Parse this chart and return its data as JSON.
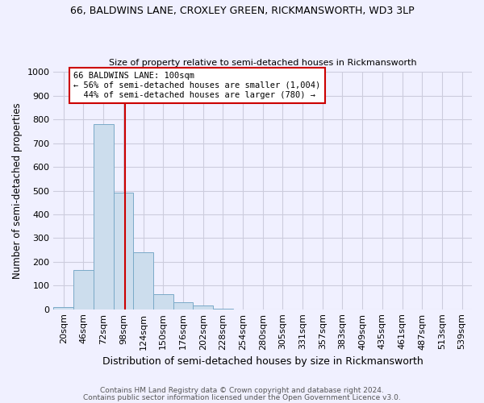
{
  "title1": "66, BALDWINS LANE, CROXLEY GREEN, RICKMANSWORTH, WD3 3LP",
  "title2": "Size of property relative to semi-detached houses in Rickmansworth",
  "xlabel": "Distribution of semi-detached houses by size in Rickmansworth",
  "ylabel": "Number of semi-detached properties",
  "footnote1": "Contains HM Land Registry data © Crown copyright and database right 2024.",
  "footnote2": "Contains public sector information licensed under the Open Government Licence v3.0.",
  "bar_labels": [
    "20sqm",
    "46sqm",
    "72sqm",
    "98sqm",
    "124sqm",
    "150sqm",
    "176sqm",
    "202sqm",
    "228sqm",
    "254sqm",
    "280sqm",
    "305sqm",
    "331sqm",
    "357sqm",
    "383sqm",
    "409sqm",
    "435sqm",
    "461sqm",
    "487sqm",
    "513sqm",
    "539sqm"
  ],
  "bar_values": [
    10,
    165,
    780,
    490,
    240,
    62,
    30,
    15,
    3,
    0,
    0,
    0,
    0,
    0,
    0,
    0,
    0,
    0,
    0,
    0,
    0
  ],
  "bar_color": "#ccdded",
  "bar_edge_color": "#7aaac8",
  "property_label": "66 BALDWINS LANE: 100sqm",
  "pct_smaller": 56,
  "pct_smaller_count": 1004,
  "pct_larger": 44,
  "pct_larger_count": 780,
  "vline_color": "#cc0000",
  "annotation_box_edge": "#cc0000",
  "ylim": [
    0,
    1000
  ],
  "yticks": [
    0,
    100,
    200,
    300,
    400,
    500,
    600,
    700,
    800,
    900,
    1000
  ],
  "grid_color": "#ccccdd",
  "background_color": "#f0f0ff",
  "title_fontsize": 9,
  "subtitle_fontsize": 8,
  "axis_label_fontsize": 8.5,
  "tick_fontsize": 8,
  "annotation_fontsize": 7.5,
  "footnote_fontsize": 6.5
}
